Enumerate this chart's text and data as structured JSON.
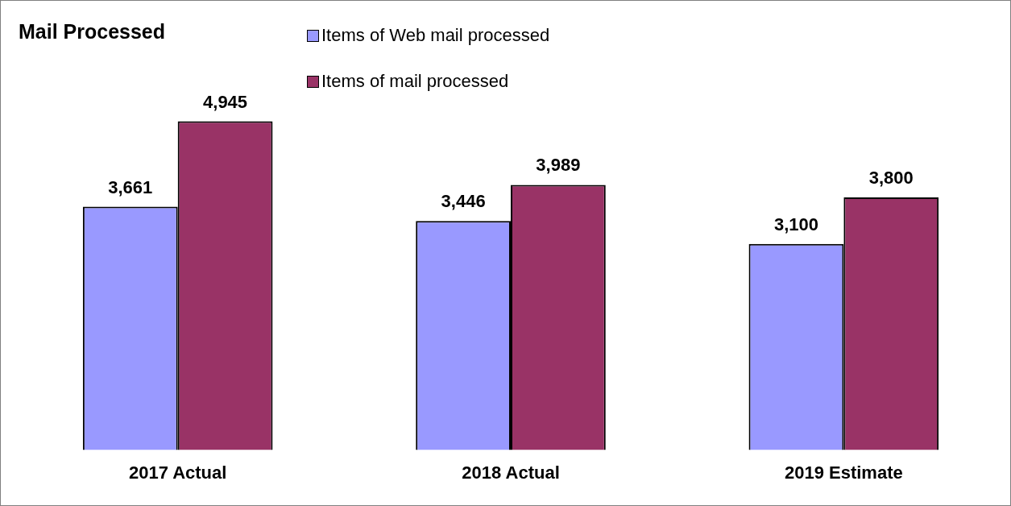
{
  "chart_data": {
    "type": "bar",
    "title": "Mail Processed",
    "categories": [
      "2017 Actual",
      "2018 Actual",
      "2019 Estimate"
    ],
    "series": [
      {
        "name": "Items of Web mail processed",
        "color": "#9999ff",
        "values": [
          3661,
          3446,
          3100
        ],
        "value_labels": [
          "3,661",
          "3,446",
          "3,100"
        ]
      },
      {
        "name": "Items of mail processed",
        "color": "#993366",
        "values": [
          4945,
          3989,
          3800
        ],
        "value_labels": [
          "4,945",
          "3,989",
          "3,800"
        ]
      }
    ],
    "legend": "top",
    "grid": false
  }
}
